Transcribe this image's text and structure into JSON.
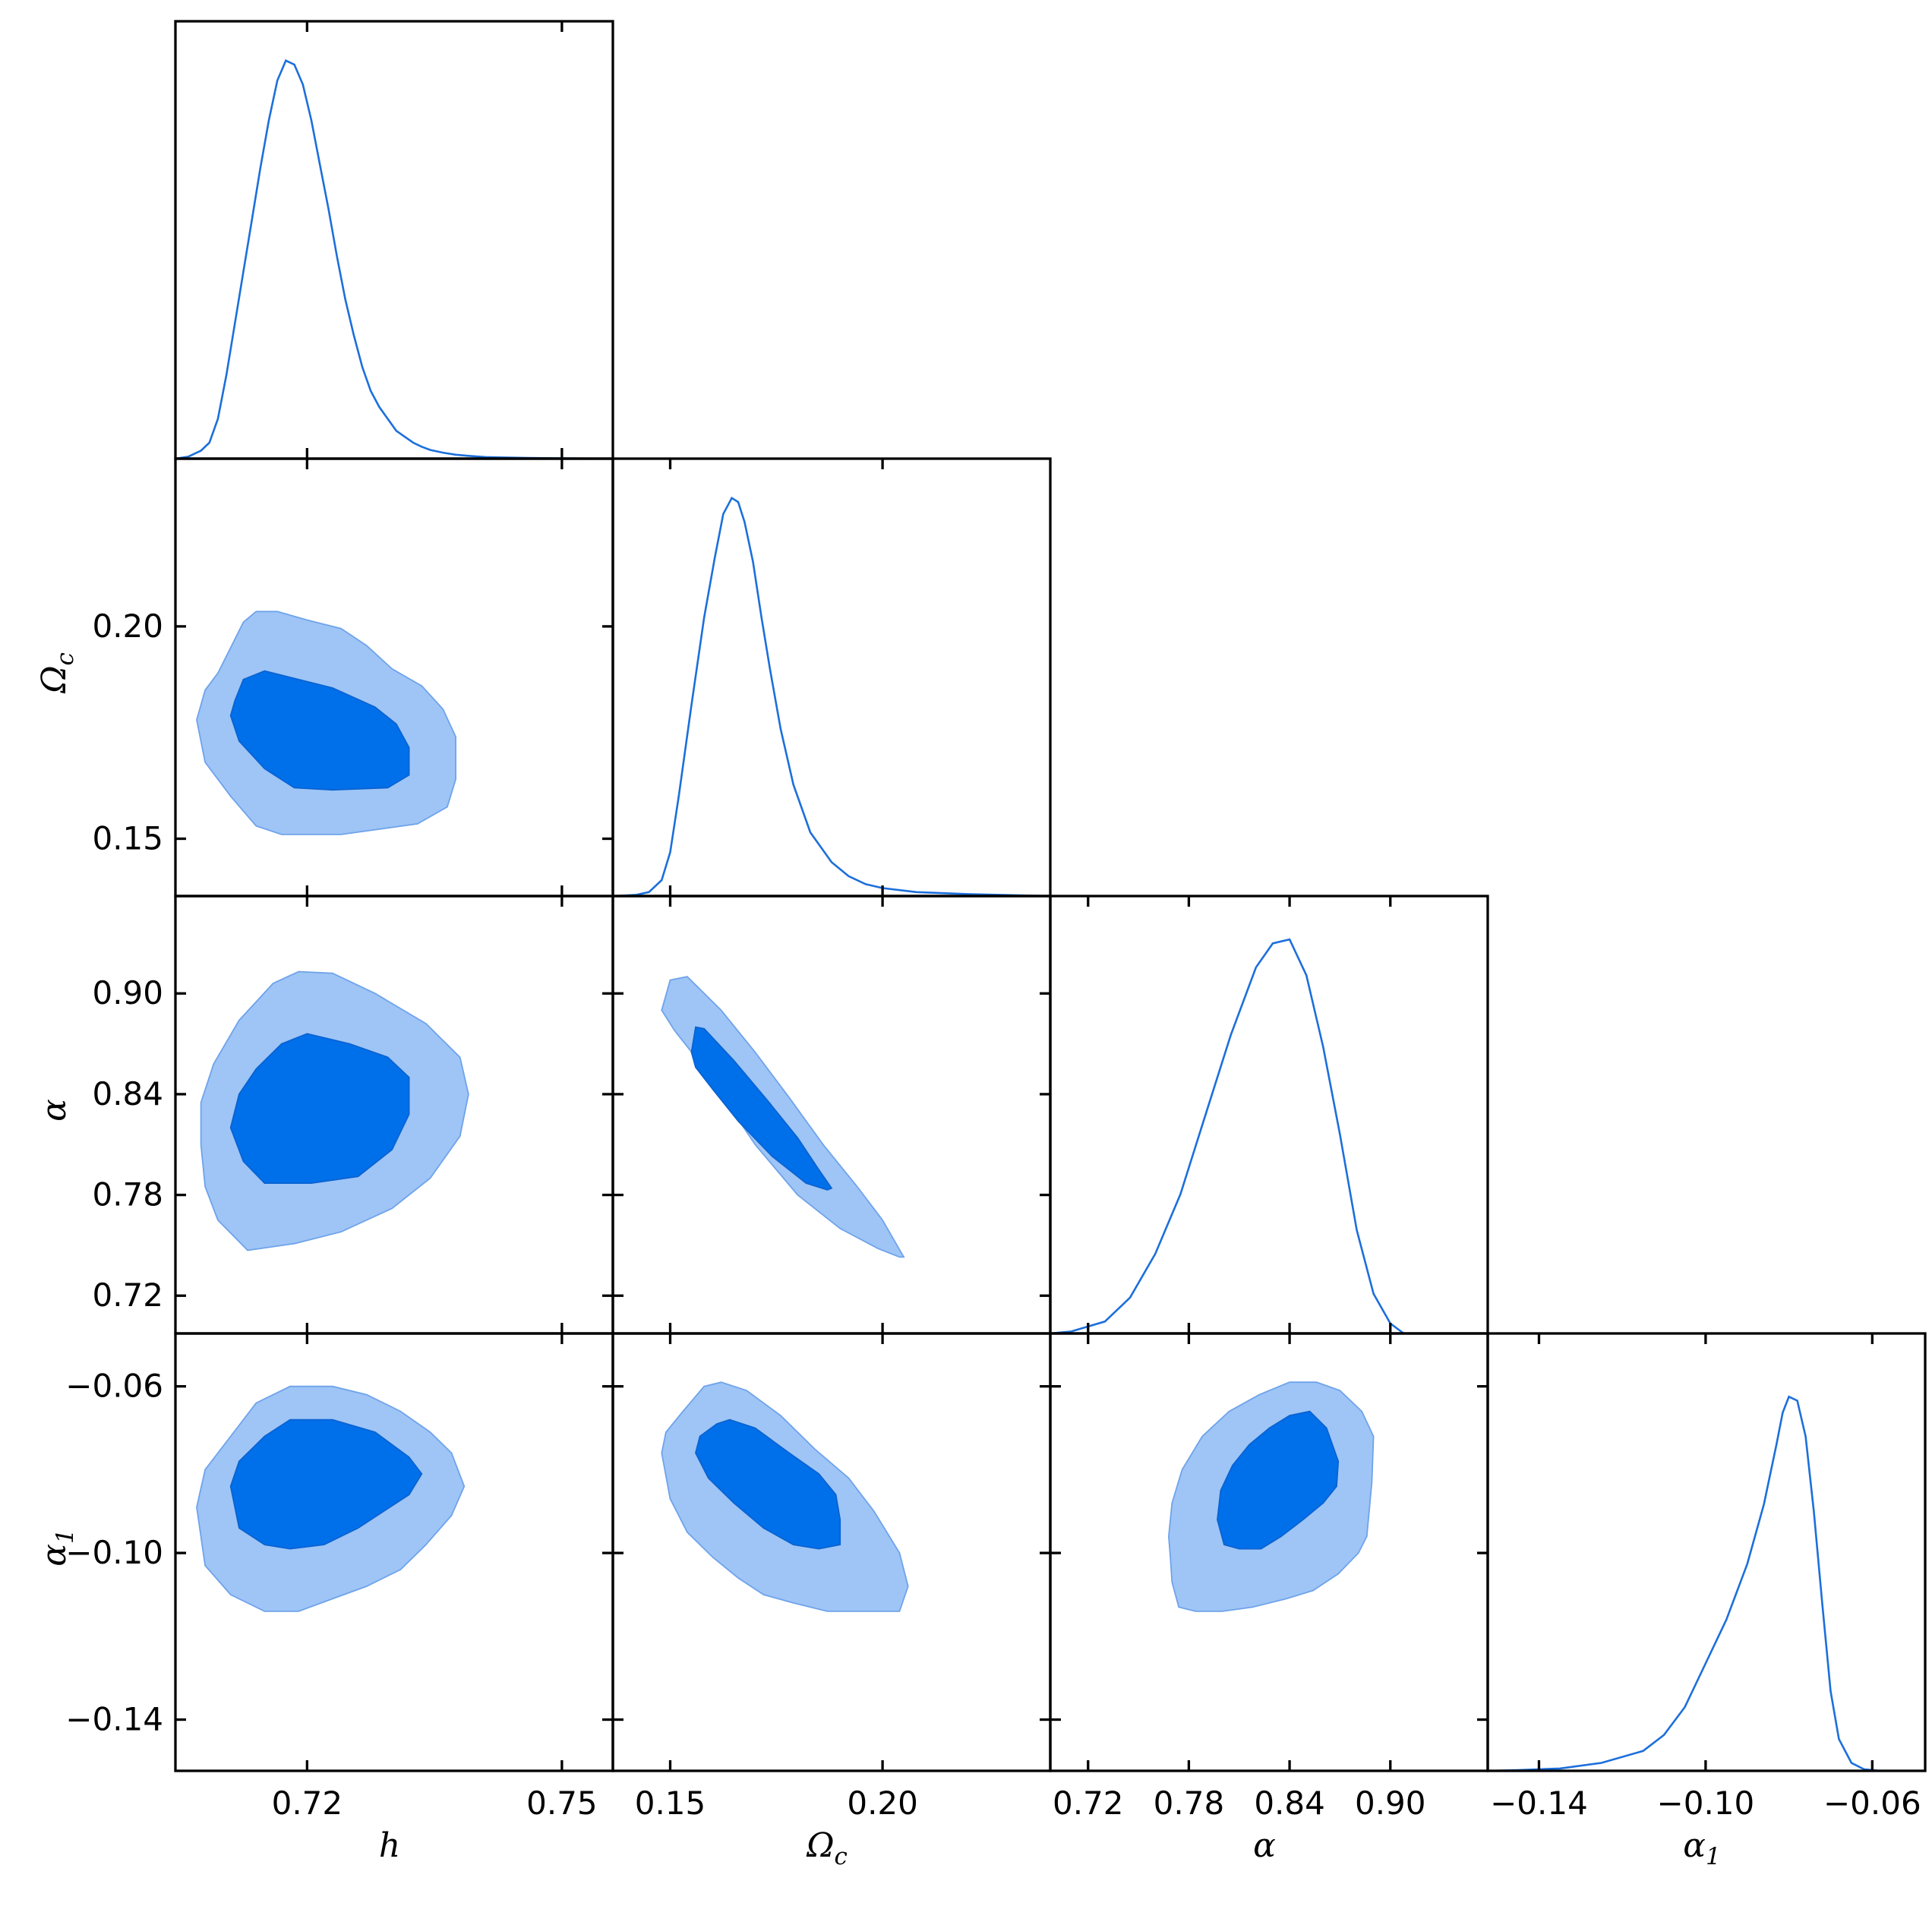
{
  "chart_data": {
    "type": "corner_plot",
    "parameters": [
      {
        "key": "h",
        "label": "h",
        "symbol": "h",
        "sub": ""
      },
      {
        "key": "omega_c",
        "label": "Ωc",
        "symbol": "Ω",
        "sub": "c"
      },
      {
        "key": "alpha",
        "label": "α",
        "symbol": "α",
        "sub": ""
      },
      {
        "key": "alpha1",
        "label": "α1",
        "symbol": "α",
        "sub": "1"
      }
    ],
    "ranges": {
      "h": [
        0.7045,
        0.756
      ],
      "omega_c": [
        0.1365,
        0.2395
      ],
      "alpha": [
        0.6975,
        0.958
      ],
      "alpha1": [
        -0.1523,
        -0.0473
      ]
    },
    "ticks": {
      "h": [
        "0.72",
        "0.75"
      ],
      "omega_c": [
        "0.15",
        "0.20"
      ],
      "alpha": [
        "0.72",
        "0.78",
        "0.84",
        "0.90"
      ],
      "alpha1": [
        "−0.14",
        "−0.10",
        "−0.06"
      ]
    },
    "tick_values": {
      "h": [
        0.72,
        0.75
      ],
      "omega_c": [
        0.15,
        0.2
      ],
      "alpha": [
        0.72,
        0.78,
        0.84,
        0.9
      ],
      "alpha1": [
        -0.14,
        -0.1,
        -0.06
      ]
    },
    "ytick_params": [
      "omega_c",
      "alpha",
      "alpha1"
    ],
    "marginals": {
      "h": {
        "x": [
          0.7045,
          0.706,
          0.7075,
          0.7085,
          0.7095,
          0.7105,
          0.7115,
          0.7125,
          0.7135,
          0.7145,
          0.7155,
          0.7165,
          0.7175,
          0.7185,
          0.7195,
          0.7205,
          0.7215,
          0.7225,
          0.7235,
          0.7245,
          0.7255,
          0.7265,
          0.7275,
          0.7285,
          0.7295,
          0.7305,
          0.7315,
          0.7325,
          0.7335,
          0.7345,
          0.736,
          0.7375,
          0.739,
          0.741,
          0.743,
          0.746,
          0.75,
          0.756
        ],
        "y": [
          0.0,
          0.005,
          0.02,
          0.04,
          0.1,
          0.21,
          0.34,
          0.47,
          0.6,
          0.73,
          0.85,
          0.95,
          1.0,
          0.99,
          0.94,
          0.85,
          0.74,
          0.63,
          0.51,
          0.4,
          0.31,
          0.23,
          0.17,
          0.13,
          0.1,
          0.07,
          0.055,
          0.04,
          0.03,
          0.022,
          0.015,
          0.01,
          0.007,
          0.004,
          0.003,
          0.002,
          0.001,
          0.0
        ]
      },
      "omega_c": {
        "x": [
          0.1365,
          0.142,
          0.145,
          0.148,
          0.15,
          0.152,
          0.155,
          0.158,
          0.1605,
          0.1625,
          0.1645,
          0.166,
          0.1675,
          0.1695,
          0.1715,
          0.1735,
          0.176,
          0.179,
          0.183,
          0.188,
          0.192,
          0.196,
          0.2,
          0.208,
          0.22,
          0.2395
        ],
        "y": [
          0.0,
          0.003,
          0.01,
          0.04,
          0.11,
          0.25,
          0.48,
          0.7,
          0.85,
          0.96,
          1.0,
          0.99,
          0.94,
          0.84,
          0.7,
          0.57,
          0.42,
          0.28,
          0.16,
          0.085,
          0.05,
          0.03,
          0.02,
          0.01,
          0.005,
          0.0
        ]
      },
      "alpha": {
        "x": [
          0.6975,
          0.71,
          0.73,
          0.745,
          0.76,
          0.775,
          0.79,
          0.805,
          0.82,
          0.83,
          0.84,
          0.85,
          0.86,
          0.87,
          0.88,
          0.89,
          0.9,
          0.908
        ],
        "y": [
          0.0,
          0.005,
          0.03,
          0.09,
          0.2,
          0.35,
          0.55,
          0.75,
          0.92,
          0.98,
          0.99,
          0.9,
          0.72,
          0.5,
          0.26,
          0.1,
          0.025,
          0.0
        ]
      },
      "alpha1": {
        "x": [
          -0.1523,
          -0.145,
          -0.135,
          -0.125,
          -0.115,
          -0.11,
          -0.105,
          -0.1,
          -0.095,
          -0.09,
          -0.086,
          -0.083,
          -0.0815,
          -0.08,
          -0.078,
          -0.076,
          -0.074,
          -0.072,
          -0.07,
          -0.068,
          -0.065,
          -0.062,
          -0.058
        ],
        "y": [
          0.0,
          0.002,
          0.006,
          0.02,
          0.05,
          0.09,
          0.16,
          0.27,
          0.38,
          0.52,
          0.67,
          0.82,
          0.9,
          0.94,
          0.93,
          0.84,
          0.65,
          0.42,
          0.2,
          0.08,
          0.02,
          0.004,
          0.0
        ]
      }
    },
    "contours": [
      {
        "x": "h",
        "y": "omega_c",
        "c95": [
          [
            0.7095,
            0.189
          ],
          [
            0.711,
            0.195
          ],
          [
            0.7125,
            0.201
          ],
          [
            0.714,
            0.2035
          ],
          [
            0.7165,
            0.2035
          ],
          [
            0.72,
            0.2015
          ],
          [
            0.724,
            0.1995
          ],
          [
            0.727,
            0.1955
          ],
          [
            0.73,
            0.19
          ],
          [
            0.7335,
            0.186
          ],
          [
            0.736,
            0.1805
          ],
          [
            0.7375,
            0.174
          ],
          [
            0.7375,
            0.164
          ],
          [
            0.7365,
            0.1575
          ],
          [
            0.733,
            0.1535
          ],
          [
            0.724,
            0.151
          ],
          [
            0.717,
            0.151
          ],
          [
            0.714,
            0.153
          ],
          [
            0.711,
            0.16
          ],
          [
            0.708,
            0.168
          ],
          [
            0.707,
            0.178
          ],
          [
            0.708,
            0.185
          ]
        ],
        "c68": [
          [
            0.7115,
            0.1825
          ],
          [
            0.7125,
            0.1875
          ],
          [
            0.715,
            0.1895
          ],
          [
            0.718,
            0.188
          ],
          [
            0.723,
            0.1855
          ],
          [
            0.728,
            0.181
          ],
          [
            0.7305,
            0.177
          ],
          [
            0.732,
            0.1715
          ],
          [
            0.732,
            0.165
          ],
          [
            0.7295,
            0.162
          ],
          [
            0.723,
            0.1615
          ],
          [
            0.7185,
            0.162
          ],
          [
            0.715,
            0.1665
          ],
          [
            0.712,
            0.173
          ],
          [
            0.711,
            0.179
          ]
        ]
      },
      {
        "x": "h",
        "y": "alpha",
        "c95": [
          [
            0.7075,
            0.81
          ],
          [
            0.708,
            0.785
          ],
          [
            0.7095,
            0.765
          ],
          [
            0.713,
            0.747
          ],
          [
            0.7185,
            0.751
          ],
          [
            0.724,
            0.758
          ],
          [
            0.73,
            0.772
          ],
          [
            0.7345,
            0.79
          ],
          [
            0.738,
            0.815
          ],
          [
            0.739,
            0.84
          ],
          [
            0.738,
            0.862
          ],
          [
            0.734,
            0.882
          ],
          [
            0.728,
            0.9
          ],
          [
            0.723,
            0.912
          ],
          [
            0.719,
            0.913
          ],
          [
            0.716,
            0.906
          ],
          [
            0.712,
            0.884
          ],
          [
            0.709,
            0.858
          ],
          [
            0.7075,
            0.835
          ]
        ],
        "c68": [
          [
            0.711,
            0.82
          ],
          [
            0.7125,
            0.8
          ],
          [
            0.715,
            0.787
          ],
          [
            0.7205,
            0.787
          ],
          [
            0.726,
            0.791
          ],
          [
            0.73,
            0.807
          ],
          [
            0.732,
            0.828
          ],
          [
            0.732,
            0.85
          ],
          [
            0.7295,
            0.862
          ],
          [
            0.725,
            0.87
          ],
          [
            0.72,
            0.876
          ],
          [
            0.717,
            0.87
          ],
          [
            0.714,
            0.855
          ],
          [
            0.712,
            0.84
          ]
        ]
      },
      {
        "x": "omega_c",
        "y": "alpha",
        "c95": [
          [
            0.148,
            0.89
          ],
          [
            0.15,
            0.908
          ],
          [
            0.154,
            0.91
          ],
          [
            0.162,
            0.89
          ],
          [
            0.17,
            0.865
          ],
          [
            0.178,
            0.838
          ],
          [
            0.186,
            0.81
          ],
          [
            0.194,
            0.785
          ],
          [
            0.2,
            0.765
          ],
          [
            0.205,
            0.743
          ],
          [
            0.204,
            0.743
          ],
          [
            0.199,
            0.748
          ],
          [
            0.19,
            0.76
          ],
          [
            0.18,
            0.78
          ],
          [
            0.17,
            0.81
          ],
          [
            0.162,
            0.84
          ],
          [
            0.156,
            0.862
          ],
          [
            0.151,
            0.878
          ]
        ],
        "c68": [
          [
            0.155,
            0.865
          ],
          [
            0.156,
            0.88
          ],
          [
            0.158,
            0.879
          ],
          [
            0.165,
            0.86
          ],
          [
            0.173,
            0.836
          ],
          [
            0.18,
            0.814
          ],
          [
            0.185,
            0.795
          ],
          [
            0.188,
            0.784
          ],
          [
            0.187,
            0.783
          ],
          [
            0.182,
            0.787
          ],
          [
            0.174,
            0.803
          ],
          [
            0.166,
            0.824
          ],
          [
            0.16,
            0.843
          ],
          [
            0.156,
            0.856
          ]
        ]
      },
      {
        "x": "h",
        "y": "alpha1",
        "c95": [
          [
            0.707,
            -0.089
          ],
          [
            0.708,
            -0.08
          ],
          [
            0.711,
            -0.072
          ],
          [
            0.714,
            -0.064
          ],
          [
            0.718,
            -0.06
          ],
          [
            0.723,
            -0.06
          ],
          [
            0.727,
            -0.062
          ],
          [
            0.731,
            -0.066
          ],
          [
            0.7345,
            -0.071
          ],
          [
            0.737,
            -0.076
          ],
          [
            0.7385,
            -0.084
          ],
          [
            0.737,
            -0.091
          ],
          [
            0.734,
            -0.098
          ],
          [
            0.731,
            -0.104
          ],
          [
            0.727,
            -0.108
          ],
          [
            0.723,
            -0.111
          ],
          [
            0.719,
            -0.114
          ],
          [
            0.715,
            -0.114
          ],
          [
            0.711,
            -0.11
          ],
          [
            0.708,
            -0.103
          ]
        ],
        "c68": [
          [
            0.711,
            -0.084
          ],
          [
            0.712,
            -0.078
          ],
          [
            0.715,
            -0.072
          ],
          [
            0.718,
            -0.068
          ],
          [
            0.723,
            -0.068
          ],
          [
            0.728,
            -0.071
          ],
          [
            0.732,
            -0.077
          ],
          [
            0.7335,
            -0.081
          ],
          [
            0.732,
            -0.086
          ],
          [
            0.729,
            -0.09
          ],
          [
            0.726,
            -0.094
          ],
          [
            0.722,
            -0.098
          ],
          [
            0.718,
            -0.099
          ],
          [
            0.715,
            -0.098
          ],
          [
            0.712,
            -0.094
          ]
        ]
      },
      {
        "x": "omega_c",
        "y": "alpha1",
        "c95": [
          [
            0.148,
            -0.076
          ],
          [
            0.149,
            -0.071
          ],
          [
            0.153,
            -0.066
          ],
          [
            0.158,
            -0.06
          ],
          [
            0.162,
            -0.059
          ],
          [
            0.168,
            -0.061
          ],
          [
            0.176,
            -0.067
          ],
          [
            0.184,
            -0.075
          ],
          [
            0.192,
            -0.082
          ],
          [
            0.198,
            -0.09
          ],
          [
            0.204,
            -0.1
          ],
          [
            0.206,
            -0.108
          ],
          [
            0.204,
            -0.114
          ],
          [
            0.195,
            -0.114
          ],
          [
            0.187,
            -0.114
          ],
          [
            0.179,
            -0.112
          ],
          [
            0.172,
            -0.11
          ],
          [
            0.166,
            -0.106
          ],
          [
            0.16,
            -0.101
          ],
          [
            0.154,
            -0.095
          ],
          [
            0.15,
            -0.087
          ]
        ],
        "c68": [
          [
            0.156,
            -0.076
          ],
          [
            0.157,
            -0.072
          ],
          [
            0.161,
            -0.069
          ],
          [
            0.164,
            -0.068
          ],
          [
            0.17,
            -0.07
          ],
          [
            0.178,
            -0.076
          ],
          [
            0.185,
            -0.081
          ],
          [
            0.189,
            -0.086
          ],
          [
            0.19,
            -0.092
          ],
          [
            0.19,
            -0.098
          ],
          [
            0.185,
            -0.099
          ],
          [
            0.179,
            -0.098
          ],
          [
            0.172,
            -0.094
          ],
          [
            0.165,
            -0.088
          ],
          [
            0.159,
            -0.082
          ]
        ]
      },
      {
        "x": "alpha",
        "y": "alpha1",
        "c95": [
          [
            0.768,
            -0.096
          ],
          [
            0.77,
            -0.088
          ],
          [
            0.776,
            -0.08
          ],
          [
            0.788,
            -0.072
          ],
          [
            0.804,
            -0.066
          ],
          [
            0.822,
            -0.062
          ],
          [
            0.84,
            -0.059
          ],
          [
            0.856,
            -0.059
          ],
          [
            0.87,
            -0.061
          ],
          [
            0.883,
            -0.066
          ],
          [
            0.89,
            -0.072
          ],
          [
            0.889,
            -0.083
          ],
          [
            0.886,
            -0.096
          ],
          [
            0.881,
            -0.1
          ],
          [
            0.869,
            -0.105
          ],
          [
            0.854,
            -0.109
          ],
          [
            0.838,
            -0.111
          ],
          [
            0.818,
            -0.113
          ],
          [
            0.8,
            -0.114
          ],
          [
            0.784,
            -0.114
          ],
          [
            0.774,
            -0.113
          ],
          [
            0.77,
            -0.107
          ],
          [
            0.769,
            -0.101
          ]
        ],
        "c68": [
          [
            0.797,
            -0.092
          ],
          [
            0.799,
            -0.085
          ],
          [
            0.806,
            -0.079
          ],
          [
            0.816,
            -0.074
          ],
          [
            0.828,
            -0.07
          ],
          [
            0.84,
            -0.067
          ],
          [
            0.852,
            -0.066
          ],
          [
            0.862,
            -0.07
          ],
          [
            0.869,
            -0.078
          ],
          [
            0.868,
            -0.084
          ],
          [
            0.86,
            -0.088
          ],
          [
            0.848,
            -0.092
          ],
          [
            0.835,
            -0.096
          ],
          [
            0.823,
            -0.099
          ],
          [
            0.81,
            -0.099
          ],
          [
            0.801,
            -0.098
          ]
        ]
      }
    ]
  }
}
